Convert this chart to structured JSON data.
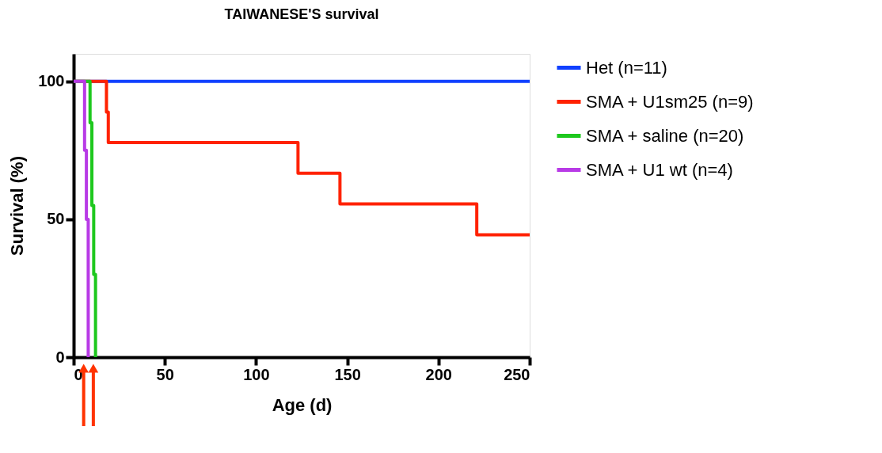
{
  "chart_data": {
    "type": "step",
    "title": "TAIWANESE'S survival",
    "xlabel": "Age (d)",
    "ylabel": "Survival (%)",
    "xlim": [
      0,
      250
    ],
    "xticks": [
      0,
      50,
      100,
      150,
      200,
      250
    ],
    "ylim": [
      0,
      110
    ],
    "yticks": [
      0,
      50,
      100
    ],
    "grid": false,
    "legend": "right",
    "series": [
      {
        "name": "Het (n=11)",
        "color": "#1040ff",
        "x": [
          0,
          250
        ],
        "values": [
          100,
          100
        ]
      },
      {
        "name": "SMA + U1sm25  (n=9)",
        "color": "#ff2200",
        "x": [
          0,
          18,
          19,
          123,
          146,
          221,
          250
        ],
        "values": [
          100,
          88.9,
          77.8,
          66.7,
          55.6,
          44.4,
          44.4
        ]
      },
      {
        "name": "SMA + saline (n=20)",
        "color": "#1ec81e",
        "x": [
          0,
          9,
          10,
          11,
          12
        ],
        "values": [
          100,
          85,
          55,
          30,
          0
        ]
      },
      {
        "name": "SMA + U1 wt (n=4)",
        "color": "#b83ae6",
        "x": [
          0,
          6,
          7,
          8
        ],
        "values": [
          100,
          75,
          50,
          0
        ]
      }
    ]
  }
}
